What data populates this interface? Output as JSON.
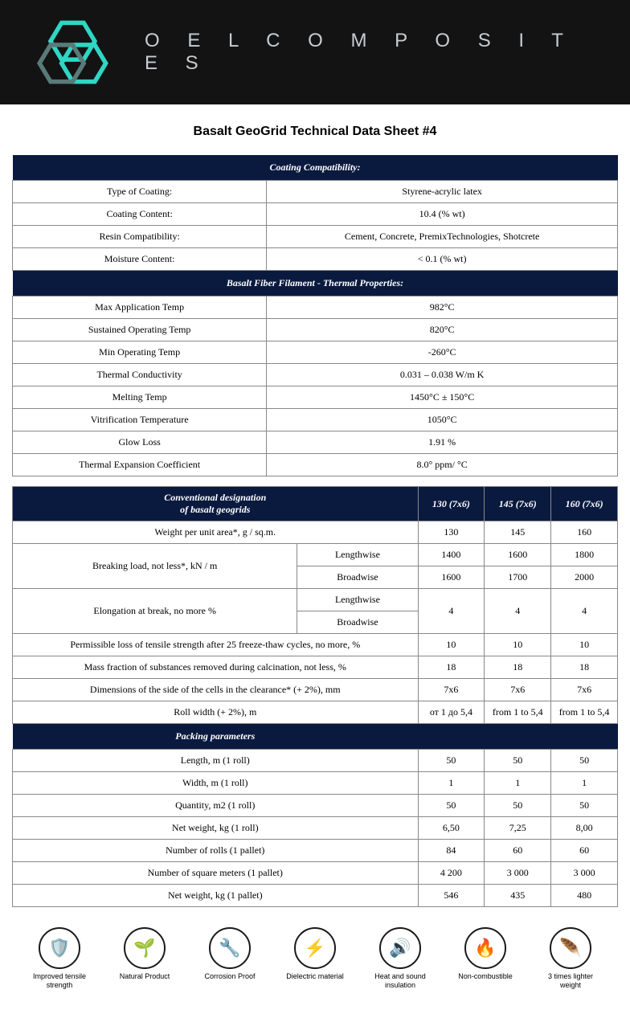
{
  "brand": {
    "name": "O E L   C O M P O S I T E S"
  },
  "title": "Basalt GeoGrid Technical Data Sheet #4",
  "colors": {
    "header_bg": "#131314",
    "section_bg": "#0a1a3f",
    "section_fg": "#ffffff",
    "logo_accent": "#2fd6c4",
    "brand_text": "#c8ccd0"
  },
  "sections": [
    {
      "header": "Coating Compatibility:",
      "rows": [
        {
          "label": "Type of Coating:",
          "value": "Styrene-acrylic latex"
        },
        {
          "label": "Coating Content:",
          "value": "10.4 (% wt)"
        },
        {
          "label": "Resin Compatibility:",
          "value": "Cement, Concrete, PremixTechnologies, Shotcrete"
        },
        {
          "label": "Moisture Content:",
          "value": "< 0.1 (% wt)"
        }
      ]
    },
    {
      "header": "Basalt Fiber Filament - Thermal Properties:",
      "rows": [
        {
          "label": "Max Application Temp",
          "value": "982°C"
        },
        {
          "label": "Sustained Operating Temp",
          "value": "820°C"
        },
        {
          "label": "Min Operating Temp",
          "value": "-260°C"
        },
        {
          "label": "Thermal Conductivity",
          "value": "0.031 – 0.038 W/m K"
        },
        {
          "label": "Melting Temp",
          "value": "1450°C ± 150°C"
        },
        {
          "label": "Vitrification Temperature",
          "value": "1050°C"
        },
        {
          "label": "Glow Loss",
          "value": "1.91 %"
        },
        {
          "label": "Thermal Expansion Coefficient",
          "value": "8.0° ppm/ °C"
        }
      ]
    }
  ],
  "spec": {
    "header_label": "Conventional designation\nof basalt geogrids",
    "models": [
      "130 (7x6)",
      "145 (7x6)",
      "160 (7x6)"
    ],
    "rows": [
      {
        "label": "Weight per unit area*, g / sq.m.",
        "vals": [
          "130",
          "145",
          "160"
        ]
      }
    ],
    "breaking_label": "Breaking load, not less*, kN / m",
    "breaking_sub1": "Lengthwise",
    "breaking_sub2": "Broadwise",
    "breaking_len": [
      "1400",
      "1600",
      "1800"
    ],
    "breaking_brd": [
      "1600",
      "1700",
      "2000"
    ],
    "elong_label": "Elongation at break, no more %",
    "elong_sub1": "Lengthwise",
    "elong_sub2": "Broadwise",
    "elong_vals": [
      "4",
      "4",
      "4"
    ],
    "freeze_label": "Permissible loss of tensile strength after 25 freeze-thaw cycles, no more, %",
    "freeze_vals": [
      "10",
      "10",
      "10"
    ],
    "calc_label": "Mass fraction of substances removed during calcination, not less, %",
    "calc_vals": [
      "18",
      "18",
      "18"
    ],
    "dim_label": "Dimensions of the side of the cells in the clearance* (+ 2%), mm",
    "dim_vals": [
      "7x6",
      "7x6",
      "7x6"
    ],
    "roll_label": "Roll width (+ 2%), m",
    "roll_vals": [
      "от 1 до 5,4",
      "from 1 to 5,4",
      "from 1 to 5,4"
    ]
  },
  "packing": {
    "header": "Packing parameters",
    "rows": [
      {
        "label": "Length, m (1 roll)",
        "vals": [
          "50",
          "50",
          "50"
        ]
      },
      {
        "label": "Width, m (1 roll)",
        "vals": [
          "1",
          "1",
          "1"
        ]
      },
      {
        "label": "Quantity, m2 (1 roll)",
        "vals": [
          "50",
          "50",
          "50"
        ]
      },
      {
        "label": "Net weight, kg (1 roll)",
        "vals": [
          "6,50",
          "7,25",
          "8,00"
        ]
      },
      {
        "label": "Number of rolls (1 pallet)",
        "vals": [
          "84",
          "60",
          "60"
        ]
      },
      {
        "label": "Number of square meters (1 pallet)",
        "vals": [
          "4 200",
          "3 000",
          "3 000"
        ]
      },
      {
        "label": "Net weight, kg (1 pallet)",
        "vals": [
          "546",
          "435",
          "480"
        ]
      }
    ]
  },
  "features": [
    {
      "icon": "🛡️",
      "label": "Improved tensile strength"
    },
    {
      "icon": "🌱",
      "label": "Natural Product"
    },
    {
      "icon": "🔧",
      "label": "Corrosion Proof"
    },
    {
      "icon": "⚡",
      "label": "Dielectric material"
    },
    {
      "icon": "🔊",
      "label": "Heat and sound insulation"
    },
    {
      "icon": "🔥",
      "label": "Non-combustible"
    },
    {
      "icon": "🪶",
      "label": "3 times lighter weight"
    }
  ]
}
